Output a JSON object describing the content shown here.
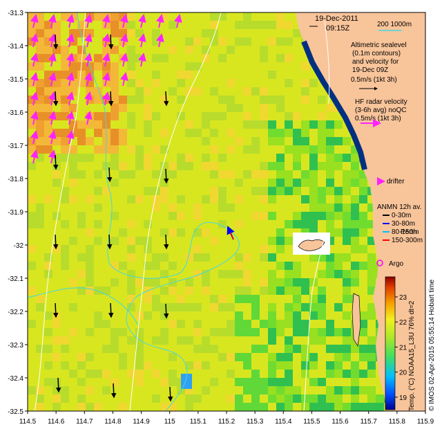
{
  "map": {
    "date": "19-Dec-2011",
    "time": "09:15Z",
    "bathy_legend": "200 1000m",
    "sealevel_legend": [
      "Altimetric sealevel",
      "(0.1m contours)",
      "and velocity for",
      "19-Dec 09Z"
    ],
    "sealevel_scale": "0.5m/s (1kt 3h)",
    "hf_legend": [
      "HF radar velocity",
      "(3-6h avg) noQC"
    ],
    "hf_scale": "0.5m/s (1kt 3h)",
    "drifter_label": "drifter",
    "anmn_title": "ANMN 12h av.",
    "anmn_items": [
      {
        "label": "0-30m",
        "color": "#000000"
      },
      {
        "label": "30-80m",
        "color": "#0000ff"
      },
      {
        "label": "80-150m",
        "color": "#00c0ff"
      },
      {
        "label": "150-300m",
        "color": "#ff0000"
      }
    ],
    "perth_label": "Perth",
    "argo_label": "Argo",
    "colorbar_label": "Temp. (°C) NOAA15_L3U 76% dt=2",
    "colorbar_ticks": [
      "19",
      "20",
      "21",
      "22",
      "23"
    ],
    "footer": "© IMOS 02-Apr-2015 05:55:14 Hobart time",
    "x_ticks": [
      "114.5",
      "114.6",
      "114.7",
      "114.8",
      "114.9",
      "115",
      "115.1",
      "115.2",
      "115.3",
      "115.4",
      "115.5",
      "115.6",
      "115.7",
      "115.8",
      "115.9"
    ],
    "y_ticks": [
      "-31.3",
      "-31.4",
      "-31.5",
      "-31.6",
      "-31.7",
      "-31.8",
      "-31.9",
      "-32",
      "-32.1",
      "-32.2",
      "-32.3",
      "-32.4",
      "-32.5"
    ],
    "colors": {
      "land": "#f8c49a",
      "ocean_base": "#d8e620",
      "bathy": "#40d8e8",
      "sealevel": "#ffffff",
      "hf": "#ff22ff",
      "argo": "#ff00ff"
    }
  }
}
